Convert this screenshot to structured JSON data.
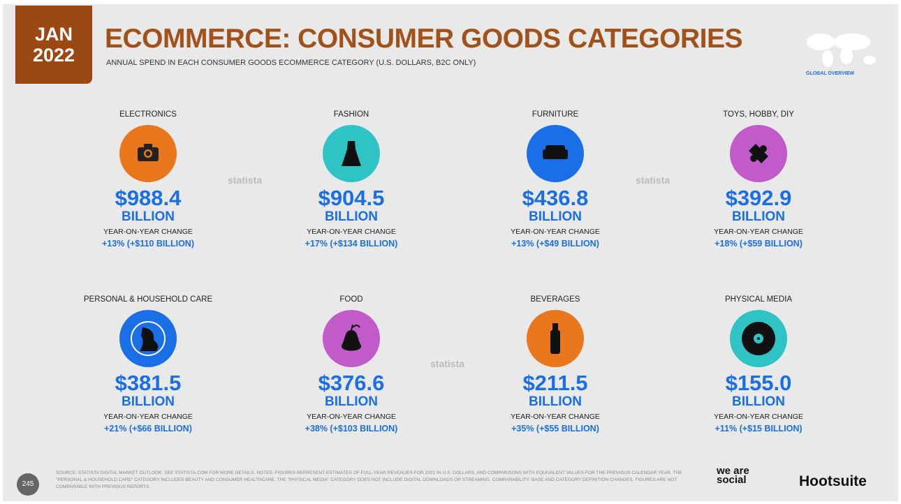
{
  "header": {
    "badge_month": "JAN",
    "badge_year": "2022",
    "title": "ECOMMERCE: CONSUMER GOODS CATEGORIES",
    "subtitle": "ANNUAL SPEND IN EACH CONSUMER GOODS ECOMMERCE CATEGORY (U.S. DOLLARS, B2C ONLY)",
    "map_label": "GLOBAL OVERVIEW"
  },
  "categories": [
    {
      "name": "ELECTRONICS",
      "value": "$988.4",
      "unit": "BILLION",
      "change_label": "YEAR-ON-YEAR CHANGE",
      "change": "+13% (+$110 BILLION)",
      "color": "#e8771e"
    },
    {
      "name": "FASHION",
      "value": "$904.5",
      "unit": "BILLION",
      "change_label": "YEAR-ON-YEAR CHANGE",
      "change": "+17% (+$134 BILLION)",
      "color": "#2fc3c6"
    },
    {
      "name": "FURNITURE",
      "value": "$436.8",
      "unit": "BILLION",
      "change_label": "YEAR-ON-YEAR CHANGE",
      "change": "+13% (+$49 BILLION)",
      "color": "#1a6fe6"
    },
    {
      "name": "TOYS, HOBBY, DIY",
      "value": "$392.9",
      "unit": "BILLION",
      "change_label": "YEAR-ON-YEAR CHANGE",
      "change": "+18% (+$59 BILLION)",
      "color": "#c05bc9"
    },
    {
      "name": "PERSONAL & HOUSEHOLD CARE",
      "value": "$381.5",
      "unit": "BILLION",
      "change_label": "YEAR-ON-YEAR CHANGE",
      "change": "+21% (+$66 BILLION)",
      "color": "#1a6fe6"
    },
    {
      "name": "FOOD",
      "value": "$376.6",
      "unit": "BILLION",
      "change_label": "YEAR-ON-YEAR CHANGE",
      "change": "+38% (+$103 BILLION)",
      "color": "#c05bc9"
    },
    {
      "name": "BEVERAGES",
      "value": "$211.5",
      "unit": "BILLION",
      "change_label": "YEAR-ON-YEAR CHANGE",
      "change": "+35% (+$55 BILLION)",
      "color": "#e8771e"
    },
    {
      "name": "PHYSICAL MEDIA",
      "value": "$155.0",
      "unit": "BILLION",
      "change_label": "YEAR-ON-YEAR CHANGE",
      "change": "+11% (+$15 BILLION)",
      "color": "#2fc3c6"
    }
  ],
  "watermarks": [
    "statista",
    "statista",
    "statista"
  ],
  "footer": {
    "page": "245",
    "source": "SOURCE: STATISTA DIGITAL MARKET OUTLOOK. SEE STATISTA.COM FOR MORE DETAILS. NOTES: FIGURES REPRESENT ESTIMATES OF FULL-YEAR REVENUES FOR 2021 IN U.S. DOLLARS, AND COMPARISONS WITH EQUIVALENT VALUES FOR THE PREVIOUS CALENDAR YEAR. THE \"PERSONAL & HOUSEHOLD CARE\" CATEGORY INCLUDES BEAUTY AND CONSUMER HEALTHCARE. THE \"PHYSICAL MEDIA\" CATEGORY DOES NOT INCLUDE DIGITAL DOWNLOADS OR STREAMING. COMPARABILITY: BASE AND CATEGORY DEFINITION CHANGES. FIGURES ARE NOT COMPARABLE WITH PREVIOUS REPORTS.",
    "logo1": "we are social",
    "logo2": "Hootsuite"
  }
}
